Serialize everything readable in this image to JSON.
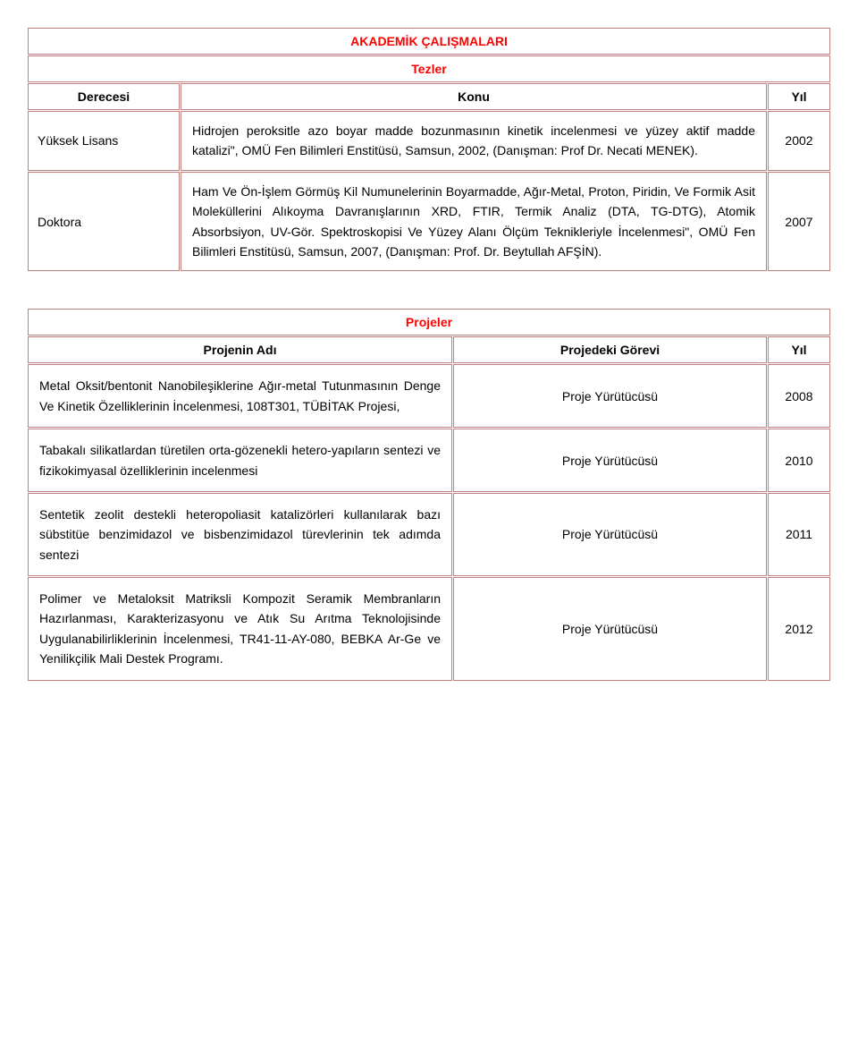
{
  "colors": {
    "accent": "#ff0000",
    "border": "#c08080",
    "background": "#ffffff",
    "text": "#000000"
  },
  "tables": {
    "theses": {
      "title": "AKADEMİK ÇALIŞMALARI",
      "subtitle": "Tezler",
      "columns": {
        "degree": "Derecesi",
        "topic": "Konu",
        "year": "Yıl"
      },
      "rows": [
        {
          "degree": "Yüksek Lisans",
          "topic": "Hidrojen peroksitle azo boyar madde bozunmasının kinetik incelenmesi ve yüzey aktif madde katalizi\", OMÜ Fen Bilimleri Enstitüsü, Samsun, 2002, (Danışman: Prof Dr. Necati MENEK).",
          "year": "2002"
        },
        {
          "degree": "Doktora",
          "topic": "Ham Ve Ön-İşlem Görmüş Kil Numunelerinin Boyarmadde, Ağır-Metal, Proton, Piridin, Ve Formik Asit Moleküllerini Alıkoyma Davranışlarının XRD, FTIR, Termik Analiz (DTA, TG-DTG), Atomik Absorbsiyon, UV-Gör. Spektroskopisi Ve Yüzey Alanı Ölçüm Teknikleriyle İncelenmesi\", OMÜ Fen Bilimleri Enstitüsü, Samsun, 2007, (Danışman: Prof. Dr. Beytullah AFŞİN).",
          "year": "2007"
        }
      ]
    },
    "projects": {
      "title": "Projeler",
      "columns": {
        "name": "Projenin Adı",
        "role": "Projedeki Görevi",
        "year": "Yıl"
      },
      "rows": [
        {
          "name": "Metal Oksit/bentonit Nanobileşiklerine Ağır-metal Tutunmasının Denge Ve Kinetik Özelliklerinin İncelenmesi, 108T301, TÜBİTAK Projesi,",
          "role": "Proje Yürütücüsü",
          "year": "2008"
        },
        {
          "name": "Tabakalı silikatlardan türetilen orta-gözenekli hetero-yapıların sentezi ve fizikokimyasal özelliklerinin incelenmesi",
          "role": "Proje Yürütücüsü",
          "year": "2010"
        },
        {
          "name": "Sentetik zeolit destekli heteropoliasit katalizörleri kullanılarak bazı sübstitüe benzimidazol ve bisbenzimidazol türevlerinin tek adımda sentezi",
          "role": "Proje Yürütücüsü",
          "year": "2011"
        },
        {
          "name": "Polimer ve Metaloksit Matriksli Kompozit Seramik Membranların Hazırlanması, Karakterizasyonu ve Atık Su Arıtma Teknolojisinde Uygulanabilirliklerinin İncelenmesi, TR41-11-AY-080, BEBKA Ar-Ge ve Yenilikçilik Mali Destek Programı.",
          "role": "Proje Yürütücüsü",
          "year": "2012"
        }
      ]
    }
  }
}
